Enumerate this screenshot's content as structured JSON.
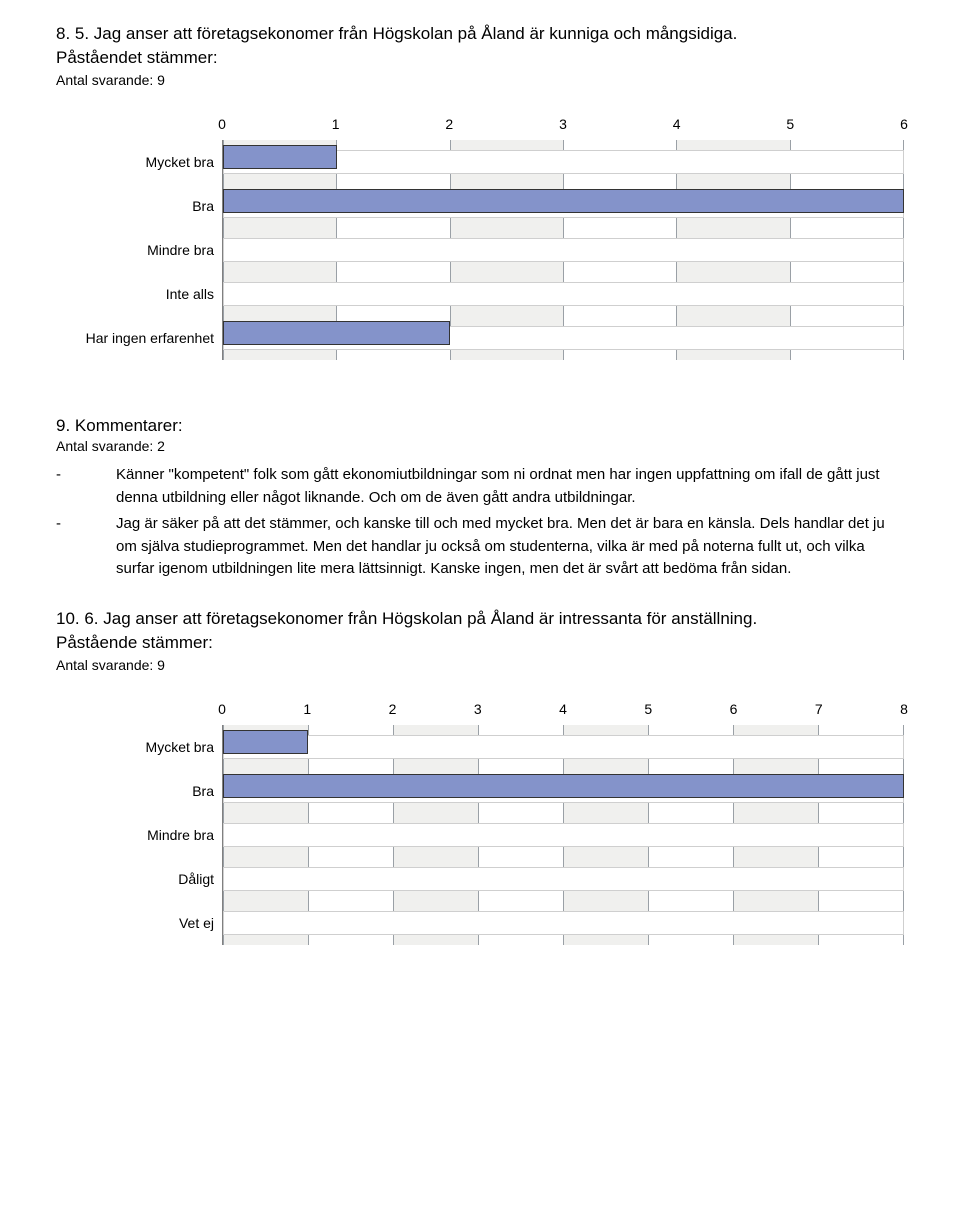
{
  "q8": {
    "title": "8. 5. Jag anser att företagsekonomer från Högskolan på Åland är kunniga och mångsidiga.",
    "sub": "Påståendet stämmer:",
    "count_label": "Antal svarande: 9",
    "chart": {
      "type": "bar",
      "xmin": 0,
      "xmax": 6,
      "xtick_step": 1,
      "ticks": [
        "0",
        "1",
        "2",
        "3",
        "4",
        "5",
        "6"
      ],
      "bar_color": "#8493ca",
      "track_bg": "#ffffff",
      "grid_color": "#9aa0a6",
      "alt_bg": "#f0f0ee",
      "categories": [
        "Mycket bra",
        "Bra",
        "Mindre bra",
        "Inte alls",
        "Har ingen erfarenhet"
      ],
      "values": [
        1,
        6,
        0,
        0,
        2
      ]
    }
  },
  "q9": {
    "title": "9. Kommentarer:",
    "count_label": "Antal svarande: 2",
    "items": [
      "Känner \"kompetent\" folk som gått ekonomiutbildningar  som ni ordnat men har ingen uppfattning om ifall de gått just denna utbildning eller något liknande. Och om de även gått andra utbildningar.",
      "Jag är säker på att det stämmer, och kanske till och med mycket bra. Men det är bara en känsla. Dels handlar det ju om själva studieprogrammet. Men det handlar ju också om studenterna, vilka är med på noterna fullt ut, och vilka surfar igenom utbildningen lite mera lättsinnigt. Kanske ingen, men det är svårt att bedöma från sidan."
    ]
  },
  "q10": {
    "title": "10. 6. Jag anser att företagsekonomer från Högskolan på Åland är intressanta för anställning.",
    "sub": "Påstående stämmer:",
    "count_label": "Antal svarande: 9",
    "chart": {
      "type": "bar",
      "xmin": 0,
      "xmax": 8,
      "xtick_step": 1,
      "ticks": [
        "0",
        "1",
        "2",
        "3",
        "4",
        "5",
        "6",
        "7",
        "8"
      ],
      "bar_color": "#8493ca",
      "track_bg": "#ffffff",
      "grid_color": "#9aa0a6",
      "alt_bg": "#f0f0ee",
      "categories": [
        "Mycket bra",
        "Bra",
        "Mindre bra",
        "Dåligt",
        "Vet ej"
      ],
      "values": [
        1,
        8,
        0,
        0,
        0
      ]
    }
  }
}
